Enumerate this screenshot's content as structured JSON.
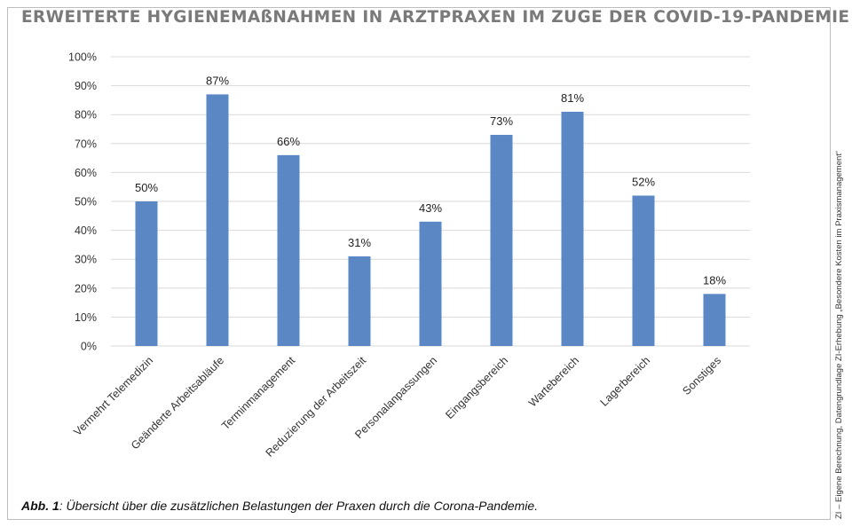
{
  "title": "ERWEITERTE HYGIENEMAßNAHMEN IN ARZTPRAXEN IM ZUGE DER COVID-19-PANDEMIE",
  "caption": {
    "lead": "Abb. 1",
    "text": ": Übersicht über die zusätzlichen Belastungen der Praxen durch die Corona-Pandemie."
  },
  "source": "ZI – Eigene Berechnung, Datengrundlage ZI-Erhebung „Besondere Kosten im Praxismanagement“",
  "chart_data": {
    "type": "bar",
    "categories": [
      "Vermehrt Telemedizin",
      "Geänderte Arbeitsabläufe",
      "Terminmanagement",
      "Reduzierung der Arbeitszeit",
      "Personalanpassungen",
      "Eingangsbereich",
      "Wartebereich",
      "Lagerbereich",
      "Sonstiges"
    ],
    "values": [
      50,
      87,
      66,
      31,
      43,
      73,
      81,
      52,
      18
    ],
    "data_labels": [
      "50%",
      "87%",
      "66%",
      "31%",
      "43%",
      "73%",
      "81%",
      "52%",
      "18%"
    ],
    "ylim": [
      0,
      100
    ],
    "yticks": [
      "0%",
      "10%",
      "20%",
      "30%",
      "40%",
      "50%",
      "60%",
      "70%",
      "80%",
      "90%",
      "100%"
    ],
    "grid": true,
    "bar_color": "#5b87c5",
    "grid_color": "#d9d9d9"
  }
}
